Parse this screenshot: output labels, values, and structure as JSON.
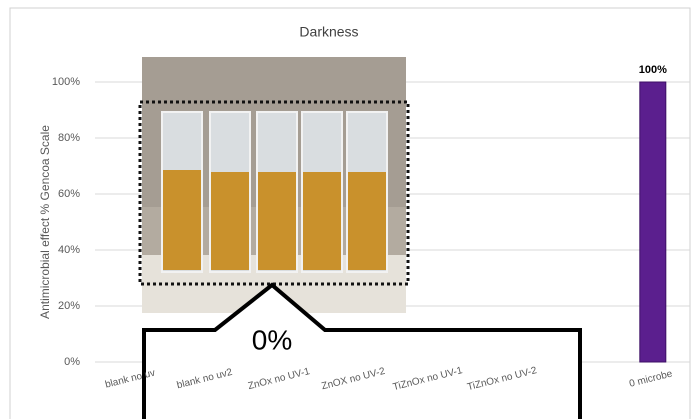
{
  "chart_data": {
    "type": "bar",
    "title": "Darkness",
    "y_label": "Antimicrobial effect % Gencoa Scale",
    "categories": [
      "blank no uv",
      "blank no uv2",
      "ZnOx no UV-1",
      "ZnOX no UV-2",
      "TiZnOx no UV-1",
      "TiZnOx no UV-2",
      "",
      "0 microbe"
    ],
    "values": [
      0,
      0,
      0,
      0,
      0,
      0,
      0,
      100
    ],
    "value_labels": [
      null,
      null,
      null,
      null,
      null,
      null,
      null,
      "100%"
    ],
    "color": "#5b1f8e",
    "ylim": [
      0,
      100
    ],
    "yticks": [
      {
        "value": 0,
        "label": "0%"
      },
      {
        "value": 20,
        "label": "20%"
      },
      {
        "value": 40,
        "label": "40%"
      },
      {
        "value": 60,
        "label": "60%"
      },
      {
        "value": 80,
        "label": "80%"
      },
      {
        "value": 100,
        "label": "100%"
      }
    ],
    "grid": true,
    "annotation": "0%"
  }
}
